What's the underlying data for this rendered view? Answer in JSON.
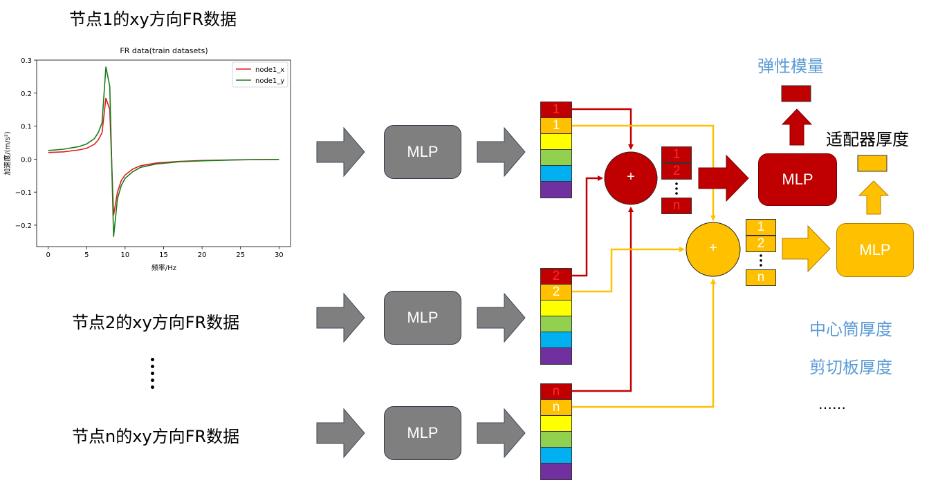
{
  "headings": {
    "node1": "节点1的xy方向FR数据",
    "node2": "节点2的xy方向FR数据",
    "noden": "节点n的xy方向FR数据"
  },
  "mlp_label": "MLP",
  "plus": "+",
  "vector_labels": [
    "1",
    "2",
    "n"
  ],
  "stack_labels": [
    "1",
    "2",
    "n"
  ],
  "outputs": {
    "red_label": "弹性模量",
    "gold_label": "适配器厚度",
    "other_labels": [
      "中心筒厚度",
      "剪切板厚度"
    ],
    "ellipsis": "……"
  },
  "colors": {
    "red": "#c00000",
    "gold": "#ffc000",
    "gray": "#7f7f7f",
    "blue_text": "#5b9bd5"
  },
  "chart_data": {
    "type": "line",
    "title": "FR data(train datasets)",
    "xlabel": "频率/Hz",
    "ylabel": "加速度/(m/s²)",
    "xlim": [
      -1.5,
      31.5
    ],
    "ylim": [
      -0.265,
      0.3
    ],
    "xticks": [
      0,
      5,
      10,
      15,
      20,
      25,
      30
    ],
    "yticks": [
      -0.2,
      -0.1,
      0.0,
      0.1,
      0.2,
      0.3
    ],
    "xtick_labels": [
      "0",
      "5",
      "10",
      "15",
      "20",
      "25",
      "30"
    ],
    "ytick_labels": [
      "−0.2",
      "−0.1",
      "0.0",
      "0.1",
      "0.2",
      "0.3"
    ],
    "legend_position": "top-right",
    "series": [
      {
        "name": "node1_x",
        "color": "#e31a1c",
        "x": [
          0,
          2,
          4,
          5,
          6,
          6.5,
          7,
          7.5,
          8,
          8.5,
          9,
          9.5,
          10,
          11,
          12,
          14,
          17,
          20,
          25,
          30
        ],
        "y": [
          0.02,
          0.022,
          0.028,
          0.033,
          0.045,
          0.058,
          0.08,
          0.185,
          0.15,
          -0.17,
          -0.1,
          -0.065,
          -0.048,
          -0.03,
          -0.02,
          -0.012,
          -0.007,
          -0.004,
          -0.002,
          -0.001
        ]
      },
      {
        "name": "node1_y",
        "color": "#1a7a1a",
        "x": [
          0,
          2,
          4,
          5,
          6,
          6.5,
          7,
          7.5,
          8,
          8.5,
          9,
          9.5,
          10,
          11,
          12,
          14,
          17,
          20,
          25,
          30
        ],
        "y": [
          0.026,
          0.03,
          0.038,
          0.046,
          0.062,
          0.08,
          0.11,
          0.28,
          0.22,
          -0.235,
          -0.12,
          -0.08,
          -0.058,
          -0.038,
          -0.025,
          -0.015,
          -0.008,
          -0.005,
          -0.002,
          -0.001
        ]
      }
    ]
  }
}
